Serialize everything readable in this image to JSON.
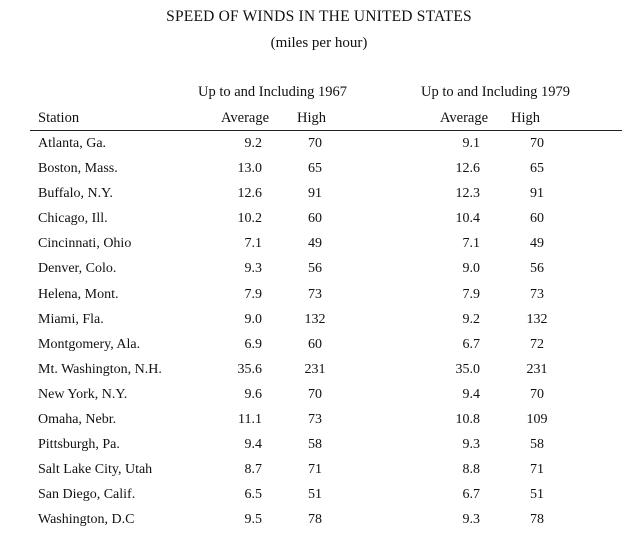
{
  "title": "SPEED OF WINDS IN THE UNITED STATES",
  "subtitle": "(miles per hour)",
  "groups": {
    "g1967": "Up to and Including 1967",
    "g1979": "Up to and Including 1979"
  },
  "columns": {
    "station": "Station",
    "average_1967": "Average",
    "high_1967": "High",
    "average_1979": "Average",
    "high_1979": "High"
  },
  "rows": [
    {
      "station": "Atlanta, Ga.",
      "avg1967": "9.2",
      "high1967": "70",
      "avg1979": "9.1",
      "high1979": "70"
    },
    {
      "station": "Boston, Mass.",
      "avg1967": "13.0",
      "high1967": "65",
      "avg1979": "12.6",
      "high1979": "65"
    },
    {
      "station": "Buffalo, N.Y.",
      "avg1967": "12.6",
      "high1967": "91",
      "avg1979": "12.3",
      "high1979": "91"
    },
    {
      "station": "Chicago, Ill.",
      "avg1967": "10.2",
      "high1967": "60",
      "avg1979": "10.4",
      "high1979": "60"
    },
    {
      "station": "Cincinnati, Ohio",
      "avg1967": "7.1",
      "high1967": "49",
      "avg1979": "7.1",
      "high1979": "49"
    },
    {
      "station": "Denver, Colo.",
      "avg1967": "9.3",
      "high1967": "56",
      "avg1979": "9.0",
      "high1979": "56"
    },
    {
      "station": "Helena, Mont.",
      "avg1967": "7.9",
      "high1967": "73",
      "avg1979": "7.9",
      "high1979": "73"
    },
    {
      "station": "Miami, Fla.",
      "avg1967": "9.0",
      "high1967": "132",
      "avg1979": "9.2",
      "high1979": "132"
    },
    {
      "station": "Montgomery, Ala.",
      "avg1967": "6.9",
      "high1967": "60",
      "avg1979": "6.7",
      "high1979": "72"
    },
    {
      "station": "Mt. Washington, N.H.",
      "avg1967": "35.6",
      "high1967": "231",
      "avg1979": "35.0",
      "high1979": "231"
    },
    {
      "station": "New York, N.Y.",
      "avg1967": "9.6",
      "high1967": "70",
      "avg1979": "9.4",
      "high1979": "70"
    },
    {
      "station": "Omaha, Nebr.",
      "avg1967": "11.1",
      "high1967": "73",
      "avg1979": "10.8",
      "high1979": "109"
    },
    {
      "station": "Pittsburgh, Pa.",
      "avg1967": "9.4",
      "high1967": "58",
      "avg1979": "9.3",
      "high1979": "58"
    },
    {
      "station": "Salt Lake City, Utah",
      "avg1967": "8.7",
      "high1967": "71",
      "avg1979": "8.8",
      "high1979": "71"
    },
    {
      "station": "San Diego, Calif.",
      "avg1967": "6.5",
      "high1967": "51",
      "avg1979": "6.7",
      "high1979": "51"
    },
    {
      "station": "Washington, D.C",
      "avg1967": "9.5",
      "high1967": "78",
      "avg1979": "9.3",
      "high1979": "78"
    }
  ]
}
